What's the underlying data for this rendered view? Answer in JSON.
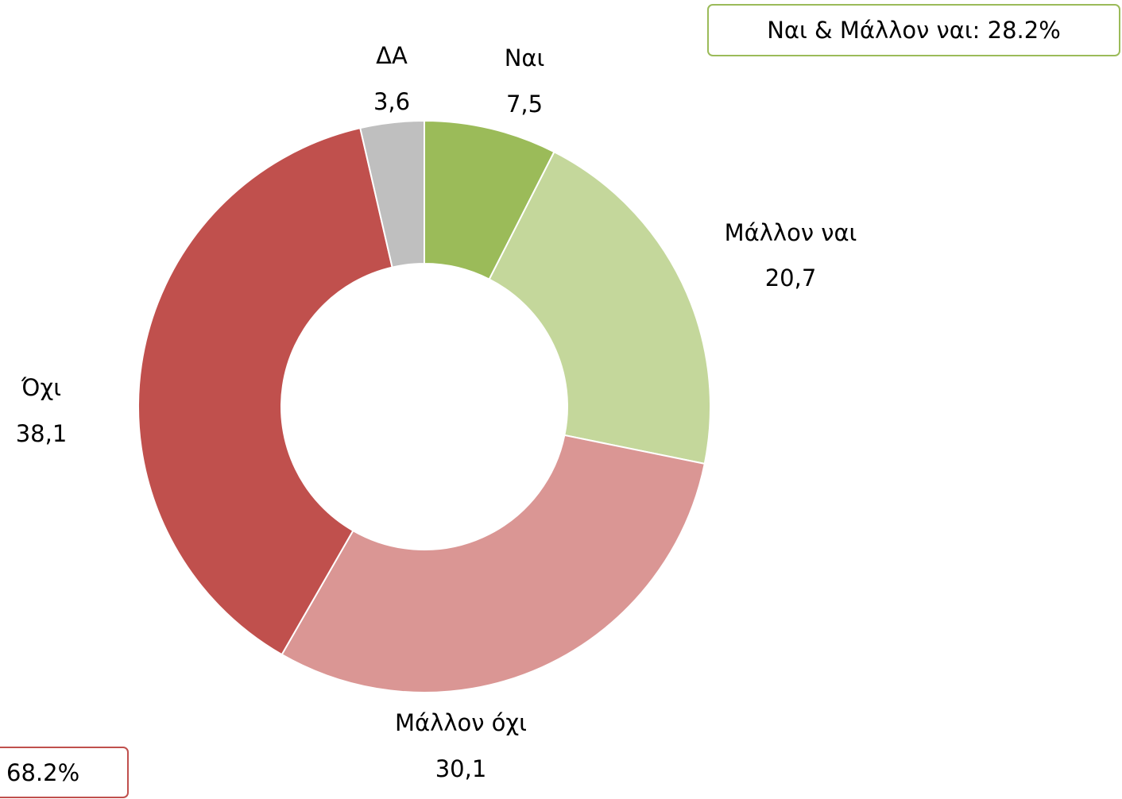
{
  "chart_data": {
    "type": "donut",
    "categories": [
      "Ναι",
      "Μάλλον ναι",
      "Μάλλον όχι",
      "Όχι",
      "ΔΑ"
    ],
    "values": [
      7.5,
      20.7,
      30.1,
      38.1,
      3.6
    ],
    "value_labels": [
      "7,5",
      "20,7",
      "30,1",
      "38,1",
      "3,6"
    ],
    "colors": [
      "#9bbb59",
      "#c4d79b",
      "#da9694",
      "#c0504d",
      "#bfbfbf"
    ],
    "annotations": [
      "Ναι & Μάλλον ναι: 28.2%",
      "68.2%"
    ]
  }
}
